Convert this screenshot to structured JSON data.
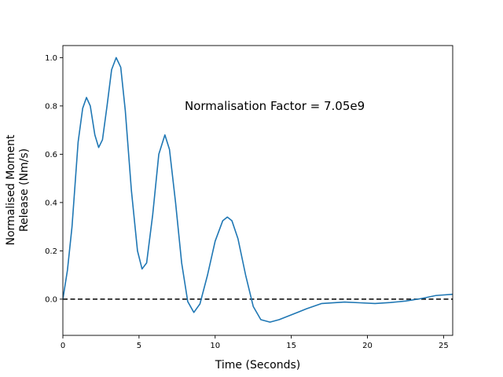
{
  "chart_data": {
    "type": "line",
    "title": "",
    "xlabel": "Time (Seconds)",
    "ylabel_lines": [
      "Normalised Moment",
      "Release (Nm/s)"
    ],
    "xlim": [
      0,
      25.6
    ],
    "ylim": [
      -0.15,
      1.05
    ],
    "xticks": [
      0,
      5,
      10,
      15,
      20,
      25
    ],
    "yticks": [
      0.0,
      0.2,
      0.4,
      0.6,
      0.8,
      1.0
    ],
    "grid": false,
    "annotation": {
      "text": "Normalisation Factor = 7.05e9",
      "x": 8.0,
      "y": 0.8
    },
    "reference_line": {
      "y": 0.0,
      "style": "dashed",
      "color": "#000000"
    },
    "series": [
      {
        "color": "#1f77b4",
        "points": [
          [
            0.0,
            0.0
          ],
          [
            0.3,
            0.12
          ],
          [
            0.6,
            0.3
          ],
          [
            1.0,
            0.65
          ],
          [
            1.3,
            0.79
          ],
          [
            1.55,
            0.835
          ],
          [
            1.8,
            0.8
          ],
          [
            2.1,
            0.68
          ],
          [
            2.35,
            0.628
          ],
          [
            2.6,
            0.66
          ],
          [
            2.9,
            0.8
          ],
          [
            3.2,
            0.95
          ],
          [
            3.5,
            1.0
          ],
          [
            3.8,
            0.96
          ],
          [
            4.1,
            0.78
          ],
          [
            4.5,
            0.45
          ],
          [
            4.9,
            0.2
          ],
          [
            5.2,
            0.125
          ],
          [
            5.5,
            0.15
          ],
          [
            5.9,
            0.35
          ],
          [
            6.3,
            0.6
          ],
          [
            6.7,
            0.68
          ],
          [
            7.0,
            0.62
          ],
          [
            7.4,
            0.4
          ],
          [
            7.8,
            0.15
          ],
          [
            8.2,
            -0.01
          ],
          [
            8.6,
            -0.055
          ],
          [
            9.0,
            -0.02
          ],
          [
            9.5,
            0.1
          ],
          [
            10.0,
            0.24
          ],
          [
            10.5,
            0.325
          ],
          [
            10.8,
            0.34
          ],
          [
            11.1,
            0.325
          ],
          [
            11.5,
            0.25
          ],
          [
            12.0,
            0.1
          ],
          [
            12.5,
            -0.03
          ],
          [
            13.0,
            -0.085
          ],
          [
            13.6,
            -0.095
          ],
          [
            14.2,
            -0.085
          ],
          [
            15.0,
            -0.065
          ],
          [
            16.0,
            -0.04
          ],
          [
            17.0,
            -0.018
          ],
          [
            18.5,
            -0.012
          ],
          [
            19.5,
            -0.015
          ],
          [
            20.5,
            -0.018
          ],
          [
            21.5,
            -0.014
          ],
          [
            22.5,
            -0.008
          ],
          [
            23.5,
            0.002
          ],
          [
            24.5,
            0.015
          ],
          [
            25.6,
            0.02
          ]
        ]
      }
    ]
  }
}
